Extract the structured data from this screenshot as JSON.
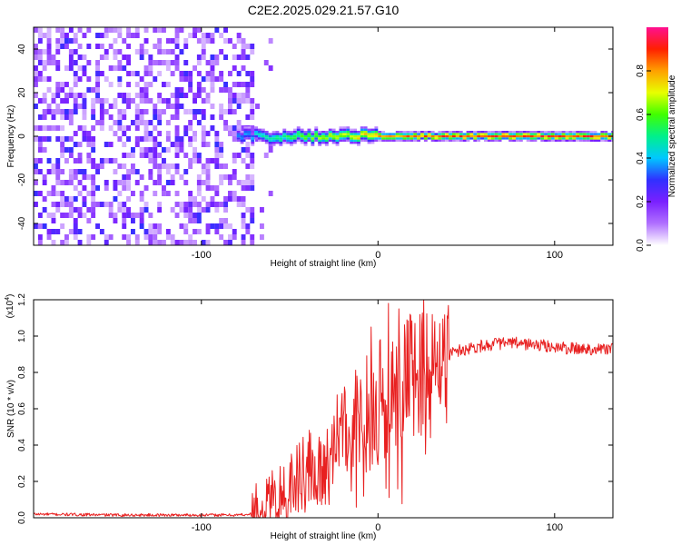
{
  "figure": {
    "title": "C2E2.2025.029.21.57.G10"
  },
  "chart_data": [
    {
      "type": "heatmap",
      "title": "C2E2.2025.029.21.57.G10",
      "xlabel": "Height of straight line (km)",
      "ylabel": "Frequency (Hz)",
      "xlim": [
        -195,
        133
      ],
      "ylim": [
        -50,
        50
      ],
      "xticks": [
        -100,
        0,
        100
      ],
      "xtick_labels": [
        "-100",
        "0",
        "100"
      ],
      "yticks": [
        -40,
        -20,
        0,
        20,
        40
      ],
      "ytick_labels": [
        "-40",
        "-20",
        "0",
        "20",
        "40"
      ],
      "colorbar": {
        "label": "Normalized spectral amplitude",
        "range": [
          0,
          1
        ],
        "ticks": [
          0.0,
          0.2,
          0.4,
          0.6,
          0.8
        ],
        "tick_labels": [
          "0.0",
          "0.2",
          "0.4",
          "0.6",
          "0.8"
        ],
        "colors": [
          "#ffffff",
          "#b070ff",
          "#7a20ff",
          "#3030ff",
          "#00c8ff",
          "#00f08c",
          "#40ff00",
          "#e8ff00",
          "#ffa000",
          "#ff2000",
          "#ff1090"
        ]
      },
      "description_points": {
        "noise_region_x": [
          -195,
          -72
        ],
        "noise_amplitude_range": [
          0.05,
          0.3
        ],
        "signal_line_frequency": 0,
        "signal_onset_x": -80,
        "signal_amplitude_profile": [
          {
            "x": -75,
            "amplitude": 0.4
          },
          {
            "x": -60,
            "amplitude": 0.55
          },
          {
            "x": -30,
            "amplitude": 0.7
          },
          {
            "x": 0,
            "amplitude": 0.85
          },
          {
            "x": 50,
            "amplitude": 0.95
          },
          {
            "x": 100,
            "amplitude": 0.95
          },
          {
            "x": 133,
            "amplitude": 0.95
          }
        ]
      }
    },
    {
      "type": "line",
      "xlabel": "Height of straight line (km)",
      "ylabel": "SNR (10 * v/v)",
      "y_multiplier_label": "(x10",
      "y_multiplier_exp": "4",
      "xlim": [
        -195,
        133
      ],
      "ylim": [
        0,
        1.2
      ],
      "xticks": [
        -100,
        0,
        100
      ],
      "xtick_labels": [
        "-100",
        "0",
        "100"
      ],
      "yticks": [
        0.0,
        0.2,
        0.4,
        0.6,
        0.8,
        1.0,
        1.2
      ],
      "ytick_labels": [
        "0.0",
        "0.2",
        "0.4",
        "0.6",
        "0.8",
        "1.0",
        "1.2"
      ],
      "color": "#e82020",
      "series": [
        {
          "x": [
            -195,
            -150,
            -100,
            -80,
            -72,
            -65,
            -60,
            -55,
            -50,
            -45,
            -40,
            -35,
            -30,
            -25,
            -20,
            -15,
            -10,
            -5,
            0,
            5,
            10,
            15,
            20,
            25,
            30,
            35,
            40,
            45,
            50,
            55,
            60,
            70,
            80,
            90,
            100,
            110,
            120,
            133
          ],
          "values": [
            0.02,
            0.015,
            0.015,
            0.015,
            0.02,
            0.06,
            0.12,
            0.15,
            0.17,
            0.2,
            0.24,
            0.28,
            0.32,
            0.36,
            0.42,
            0.48,
            0.5,
            0.56,
            0.62,
            0.68,
            0.72,
            0.76,
            0.8,
            0.83,
            0.86,
            0.88,
            0.9,
            0.92,
            0.93,
            0.94,
            0.95,
            0.96,
            0.96,
            0.95,
            0.94,
            0.93,
            0.93,
            0.93
          ]
        }
      ],
      "spikes": [
        {
          "x": -19,
          "value": 0.72
        },
        {
          "x": -12,
          "value": 0.78
        },
        {
          "x": -4,
          "value": 1.05
        },
        {
          "x": 6,
          "value": 1.18
        },
        {
          "x": 12,
          "value": 1.15
        },
        {
          "x": 18,
          "value": 1.12
        },
        {
          "x": 26,
          "value": 1.2
        },
        {
          "x": 32,
          "value": 1.08
        }
      ]
    }
  ]
}
